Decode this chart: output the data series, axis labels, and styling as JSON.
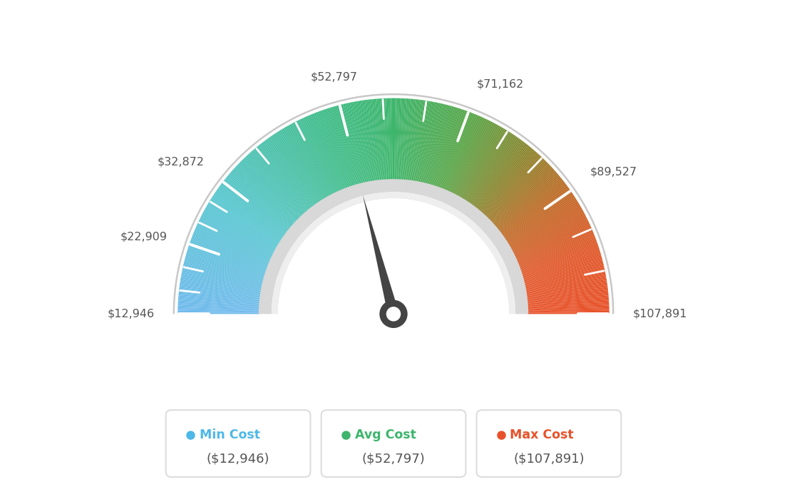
{
  "min_value": 12946,
  "max_value": 107891,
  "avg_value": 52797,
  "tick_labels": [
    "$12,946",
    "$22,909",
    "$32,872",
    "$52,797",
    "$71,162",
    "$89,527",
    "$107,891"
  ],
  "tick_values": [
    12946,
    22909,
    32872,
    52797,
    71162,
    89527,
    107891
  ],
  "legend": [
    {
      "label": "Min Cost",
      "value": "($12,946)",
      "color": "#4db8e8"
    },
    {
      "label": "Avg Cost",
      "value": "($52,797)",
      "color": "#3db56c"
    },
    {
      "label": "Max Cost",
      "value": "($107,891)",
      "color": "#e8522a"
    }
  ],
  "needle_value": 52797,
  "bg_color": "#ffffff",
  "color_stops": [
    [
      0.0,
      [
        0.44,
        0.73,
        0.93
      ]
    ],
    [
      0.18,
      [
        0.35,
        0.78,
        0.82
      ]
    ],
    [
      0.38,
      [
        0.25,
        0.74,
        0.55
      ]
    ],
    [
      0.5,
      [
        0.24,
        0.71,
        0.42
      ]
    ],
    [
      0.62,
      [
        0.35,
        0.65,
        0.28
      ]
    ],
    [
      0.72,
      [
        0.55,
        0.52,
        0.18
      ]
    ],
    [
      0.8,
      [
        0.75,
        0.42,
        0.15
      ]
    ],
    [
      0.9,
      [
        0.88,
        0.35,
        0.17
      ]
    ],
    [
      1.0,
      [
        0.91,
        0.32,
        0.16
      ]
    ]
  ]
}
